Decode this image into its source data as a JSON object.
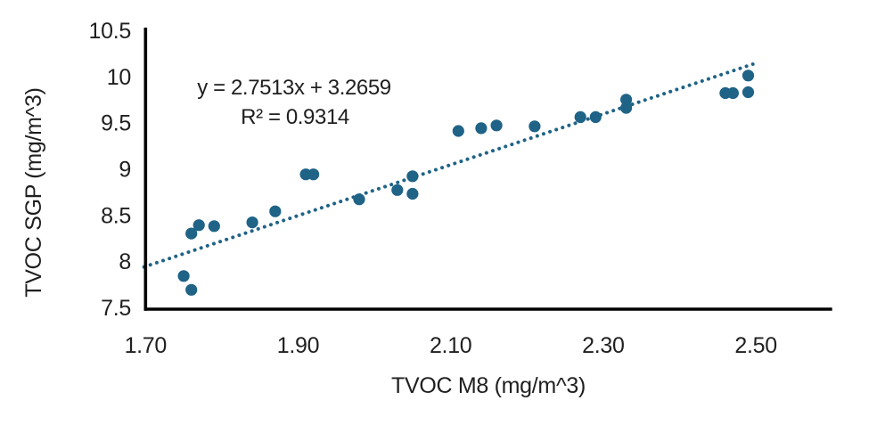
{
  "page": {
    "background": "#ffffff"
  },
  "chart_data": {
    "type": "scatter",
    "title": "",
    "xlabel": "TVOC M8 (mg/m^3)",
    "ylabel": "TVOC SGP (mg/m^3)",
    "xlim": [
      1.7,
      2.6
    ],
    "ylim": [
      7.5,
      10.5
    ],
    "x_tick_labels": [
      "1.70",
      "1.90",
      "2.10",
      "2.30",
      "2.50"
    ],
    "x_tick_values": [
      1.7,
      1.9,
      2.1,
      2.3,
      2.5
    ],
    "y_tick_labels": [
      "7.5",
      "8",
      "8.5",
      "9",
      "9.5",
      "10",
      "10.5"
    ],
    "y_tick_values": [
      7.5,
      8.0,
      8.5,
      9.0,
      9.5,
      10.0,
      10.5
    ],
    "grid": false,
    "legend_position": "none",
    "points": [
      [
        1.75,
        7.84
      ],
      [
        1.76,
        7.69
      ],
      [
        1.76,
        8.3
      ],
      [
        1.77,
        8.39
      ],
      [
        1.79,
        8.38
      ],
      [
        1.84,
        8.42
      ],
      [
        1.87,
        8.54
      ],
      [
        1.91,
        8.94
      ],
      [
        1.92,
        8.94
      ],
      [
        1.98,
        8.67
      ],
      [
        2.03,
        8.77
      ],
      [
        2.05,
        8.92
      ],
      [
        2.05,
        8.73
      ],
      [
        2.11,
        9.41
      ],
      [
        2.14,
        9.44
      ],
      [
        2.16,
        9.47
      ],
      [
        2.21,
        9.46
      ],
      [
        2.27,
        9.56
      ],
      [
        2.29,
        9.56
      ],
      [
        2.33,
        9.75
      ],
      [
        2.33,
        9.66
      ],
      [
        2.46,
        9.82
      ],
      [
        2.47,
        9.82
      ],
      [
        2.49,
        10.01
      ],
      [
        2.49,
        9.83
      ]
    ],
    "trendline": {
      "type": "linear",
      "style": "dotted",
      "slope": 2.7513,
      "intercept": 3.2659,
      "x_start": 1.698,
      "x_end": 2.496,
      "equation": "y = 2.7513x + 3.2659",
      "r_squared": "R² = 0.9314"
    },
    "colors": {
      "marker": "#1F6387",
      "trendline": "#1F6387",
      "axis": "#000000",
      "text": "#1F1F1F"
    }
  }
}
